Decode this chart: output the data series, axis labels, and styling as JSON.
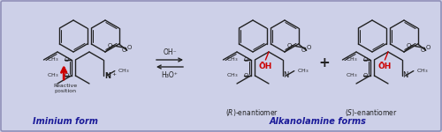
{
  "bg": "#cdd0e8",
  "border": "#9090b8",
  "title_blue": "#1a1a99",
  "black": "#222222",
  "red": "#cc0000",
  "fig_w": 5.0,
  "fig_h": 1.5,
  "dpi": 100,
  "label_iminium": "Iminium form",
  "label_alkanolamine": "Alkanolamine forms",
  "label_r": "(​R​)-enantiomer",
  "label_s": "(​S​)-enantiomer",
  "label_reactive": "Reactive\nposition",
  "oh_minus": "OH⁻",
  "h3o_plus": "H₃O⁺"
}
